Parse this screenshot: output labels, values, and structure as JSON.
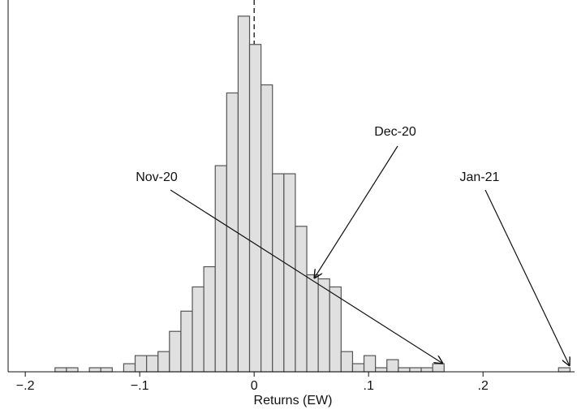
{
  "chart_data": {
    "type": "histogram",
    "xlabel": "Returns  (EW)",
    "bins": [
      -0.174,
      -0.164,
      -0.154,
      -0.144,
      -0.134,
      -0.124,
      -0.114,
      -0.104,
      -0.094,
      -0.084,
      -0.074,
      -0.064,
      -0.054,
      -0.044,
      -0.034,
      -0.024,
      -0.014,
      -0.004,
      0.006,
      0.016,
      0.026,
      0.036,
      0.046,
      0.056,
      0.066,
      0.076,
      0.086,
      0.096,
      0.106,
      0.116,
      0.126,
      0.136,
      0.146,
      0.156,
      0.166,
      0.176,
      0.186,
      0.196,
      0.206,
      0.216,
      0.226,
      0.236,
      0.246,
      0.256,
      0.266,
      0.276
    ],
    "values": [
      1,
      1,
      0,
      1,
      1,
      0,
      2,
      4,
      4,
      5,
      10,
      15,
      21,
      26,
      51,
      69,
      88,
      81,
      71,
      49,
      49,
      36,
      24,
      23,
      21,
      5,
      2,
      4,
      1,
      3,
      1,
      1,
      1,
      2,
      0,
      0,
      0,
      0,
      0,
      0,
      0,
      0,
      0,
      0,
      1
    ],
    "color": "#e0e0e0",
    "xlim": [
      -0.215,
      0.28
    ],
    "ylim": [
      0,
      92
    ],
    "xticks": [
      {
        "value": -0.2,
        "label": "−.2"
      },
      {
        "value": -0.1,
        "label": "−.1"
      },
      0,
      {
        "value": 0.1,
        "label": ".1"
      },
      {
        "value": 0.2,
        "label": ".2"
      }
    ],
    "annotations": [
      "Nov-20",
      "Dec-20",
      "Jan-21"
    ]
  }
}
